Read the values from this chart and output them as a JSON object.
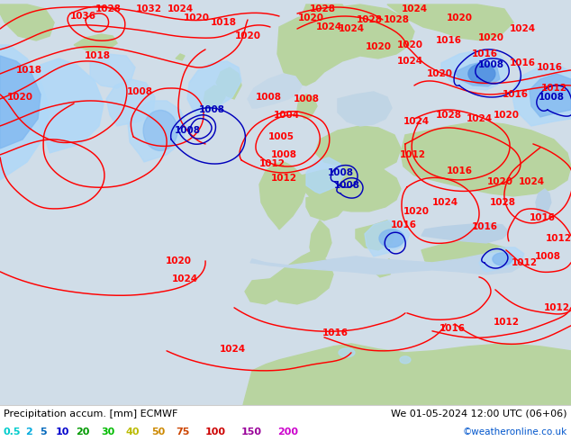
{
  "title_left": "Precipitation accum. [mm] ECMWF",
  "title_right": "We 01-05-2024 12:00 UTC (06+06)",
  "credit": "©weatheronline.co.uk",
  "legend_values": [
    "0.5",
    "2",
    "5",
    "10",
    "20",
    "30",
    "40",
    "50",
    "75",
    "100",
    "150",
    "200"
  ],
  "legend_text_colors": [
    "#00cccc",
    "#00aadd",
    "#0066bb",
    "#0000cc",
    "#009900",
    "#00bb00",
    "#bbbb00",
    "#cc8800",
    "#cc4400",
    "#cc0000",
    "#990099",
    "#cc00cc"
  ],
  "ocean_color": "#d0dde8",
  "land_color": "#b8d4a0",
  "precip_light": "#b0d8f8",
  "precip_mid": "#80b8f0",
  "precip_dark": "#5090e0",
  "precip_deep": "#2060c0",
  "fig_width": 6.34,
  "fig_height": 4.9,
  "dpi": 100
}
